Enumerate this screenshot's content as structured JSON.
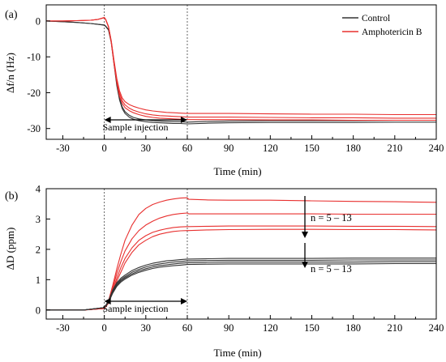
{
  "figure": {
    "panels": [
      {
        "label": "(a)",
        "xlabel": "Time (min)",
        "ylabel": "Δf/n (Hz)"
      },
      {
        "label": "(b)",
        "xlabel": "Time (min)",
        "ylabel": "ΔD (ppm)"
      }
    ],
    "legend": [
      {
        "name": "Control",
        "color": "#333333"
      },
      {
        "name": "Amphotericin B",
        "color": "#e8302f"
      }
    ],
    "annotations": {
      "injection_a": "Sample injection",
      "injection_b": "Sample injection",
      "n_red": "n = 5 – 13",
      "n_black": "n = 5 – 13"
    }
  },
  "chart_data": [
    {
      "type": "line",
      "label": "(a)",
      "xlabel": "Time (min)",
      "ylabel": "Δf/n (Hz)",
      "xlim": [
        -42,
        240
      ],
      "ylim": [
        -33,
        4.5
      ],
      "xticks": [
        -30,
        0,
        30,
        60,
        90,
        120,
        150,
        180,
        210,
        240
      ],
      "yticks": [
        0,
        -10,
        -20,
        -30
      ],
      "legend_position": "top-right",
      "vlines": [
        0,
        60
      ],
      "injection_interval": [
        0,
        60
      ],
      "series": [
        {
          "group": "Control",
          "color": "#333333",
          "x": [
            -42,
            -30,
            -20,
            -10,
            -5,
            0,
            1,
            3,
            5,
            7,
            9,
            11,
            13,
            15,
            18,
            21,
            25,
            30,
            35,
            40,
            45,
            50,
            55,
            60,
            75,
            90,
            120,
            150,
            180,
            210,
            240
          ],
          "y": [
            0,
            -0.2,
            -0.4,
            -0.7,
            -0.9,
            -1.2,
            -1.5,
            -2.5,
            -6,
            -12,
            -18,
            -22,
            -24.5,
            -25.8,
            -26.8,
            -27.4,
            -27.8,
            -28.1,
            -28.3,
            -28.4,
            -28.5,
            -28.6,
            -28.6,
            -28.7,
            -28.5,
            -28.4,
            -28.3,
            -28.3,
            -28.3,
            -28.2,
            -28.2
          ]
        },
        {
          "group": "Control",
          "color": "#333333",
          "x": [
            -42,
            -30,
            -20,
            -10,
            -5,
            0,
            1,
            3,
            5,
            7,
            9,
            11,
            13,
            15,
            18,
            21,
            25,
            30,
            35,
            40,
            45,
            50,
            55,
            60,
            75,
            90,
            120,
            150,
            180,
            210,
            240
          ],
          "y": [
            0,
            -0.2,
            -0.4,
            -0.7,
            -0.9,
            -1.1,
            -1.4,
            -2.4,
            -5.8,
            -11.5,
            -17.5,
            -21.5,
            -24,
            -25.3,
            -26.3,
            -26.9,
            -27.3,
            -27.6,
            -27.8,
            -27.9,
            -28,
            -28.1,
            -28.1,
            -28.2,
            -28,
            -27.9,
            -27.8,
            -27.8,
            -27.8,
            -27.7,
            -27.7
          ]
        },
        {
          "group": "Amphotericin B",
          "color": "#e8302f",
          "x": [
            -42,
            -30,
            -20,
            -10,
            -5,
            0,
            1,
            3,
            5,
            7,
            9,
            11,
            13,
            15,
            18,
            21,
            25,
            30,
            35,
            40,
            45,
            50,
            55,
            60,
            75,
            90,
            120,
            150,
            180,
            210,
            240
          ],
          "y": [
            0,
            0,
            0.1,
            0.2,
            0.4,
            1,
            0.5,
            -1.5,
            -5.5,
            -11,
            -16,
            -19.5,
            -21.5,
            -22.5,
            -23.3,
            -23.8,
            -24.3,
            -24.8,
            -25.1,
            -25.3,
            -25.5,
            -25.6,
            -25.7,
            -25.8,
            -25.8,
            -25.8,
            -25.9,
            -26,
            -26,
            -26.1,
            -26.1
          ]
        },
        {
          "group": "Amphotericin B",
          "color": "#e8302f",
          "x": [
            -42,
            -30,
            -20,
            -10,
            -5,
            0,
            1,
            3,
            5,
            7,
            9,
            11,
            13,
            15,
            18,
            21,
            25,
            30,
            35,
            40,
            45,
            50,
            55,
            60,
            75,
            90,
            120,
            150,
            180,
            210,
            240
          ],
          "y": [
            0,
            0,
            0.1,
            0.2,
            0.4,
            0.9,
            0.4,
            -1.6,
            -5.8,
            -11.5,
            -16.6,
            -20.2,
            -22.3,
            -23.4,
            -24.3,
            -24.9,
            -25.4,
            -25.9,
            -26.2,
            -26.4,
            -26.5,
            -26.6,
            -26.7,
            -26.8,
            -26.8,
            -26.8,
            -26.9,
            -27,
            -27,
            -27.1,
            -27.1
          ]
        },
        {
          "group": "Amphotericin B",
          "color": "#e8302f",
          "x": [
            -42,
            -30,
            -20,
            -10,
            -5,
            0,
            1,
            3,
            5,
            7,
            9,
            11,
            13,
            15,
            18,
            21,
            25,
            30,
            35,
            40,
            45,
            50,
            55,
            60,
            75,
            90,
            120,
            150,
            180,
            210,
            240
          ],
          "y": [
            0,
            0,
            0.1,
            0.2,
            0.4,
            0.9,
            0.4,
            -1.7,
            -6,
            -12,
            -17.2,
            -21,
            -23,
            -24.2,
            -25,
            -25.6,
            -26.1,
            -26.6,
            -26.9,
            -27.1,
            -27.2,
            -27.3,
            -27.4,
            -27.5,
            -27.5,
            -27.5,
            -27.6,
            -27.6,
            -27.7,
            -27.7,
            -27.7
          ]
        }
      ]
    },
    {
      "type": "line",
      "label": "(b)",
      "xlabel": "Time (min)",
      "ylabel": "ΔD (ppm)",
      "xlim": [
        -42,
        240
      ],
      "ylim": [
        -0.3,
        4
      ],
      "xticks": [
        -30,
        0,
        30,
        60,
        90,
        120,
        150,
        180,
        210,
        240
      ],
      "yticks": [
        0,
        1,
        2,
        3,
        4
      ],
      "vlines": [
        0,
        60
      ],
      "injection_interval": [
        0,
        60
      ],
      "series": [
        {
          "group": "Amphotericin B",
          "color": "#e8302f",
          "x": [
            -42,
            -30,
            -15,
            0,
            3,
            6,
            9,
            12,
            15,
            20,
            25,
            30,
            35,
            40,
            45,
            50,
            55,
            60,
            61,
            75,
            90,
            120,
            150,
            180,
            210,
            240
          ],
          "y": [
            0,
            0,
            0,
            0.05,
            0.3,
            0.8,
            1.35,
            1.85,
            2.3,
            2.8,
            3.15,
            3.35,
            3.48,
            3.56,
            3.62,
            3.66,
            3.69,
            3.7,
            3.65,
            3.63,
            3.62,
            3.62,
            3.6,
            3.58,
            3.57,
            3.55
          ]
        },
        {
          "group": "Amphotericin B",
          "color": "#e8302f",
          "x": [
            -42,
            -30,
            -15,
            0,
            3,
            6,
            9,
            12,
            15,
            20,
            25,
            30,
            35,
            40,
            45,
            50,
            55,
            60,
            61,
            75,
            90,
            120,
            150,
            180,
            210,
            240
          ],
          "y": [
            0,
            0,
            0,
            0.05,
            0.28,
            0.72,
            1.2,
            1.6,
            1.95,
            2.35,
            2.62,
            2.8,
            2.93,
            3.03,
            3.1,
            3.15,
            3.18,
            3.2,
            3.17,
            3.17,
            3.17,
            3.17,
            3.17,
            3.16,
            3.16,
            3.16
          ]
        },
        {
          "group": "Amphotericin B",
          "color": "#e8302f",
          "x": [
            -42,
            -30,
            -15,
            0,
            3,
            6,
            9,
            12,
            15,
            20,
            25,
            30,
            35,
            40,
            45,
            50,
            55,
            60,
            61,
            75,
            90,
            120,
            150,
            180,
            210,
            240
          ],
          "y": [
            0,
            0,
            0,
            0.05,
            0.25,
            0.65,
            1.05,
            1.4,
            1.7,
            2.05,
            2.3,
            2.45,
            2.56,
            2.63,
            2.68,
            2.72,
            2.74,
            2.75,
            2.75,
            2.76,
            2.77,
            2.77,
            2.77,
            2.76,
            2.76,
            2.75
          ]
        },
        {
          "group": "Amphotericin B",
          "color": "#e8302f",
          "x": [
            -42,
            -30,
            -15,
            0,
            3,
            6,
            9,
            12,
            15,
            20,
            25,
            30,
            35,
            40,
            45,
            50,
            55,
            60,
            61,
            75,
            90,
            120,
            150,
            180,
            210,
            240
          ],
          "y": [
            0,
            0,
            0,
            0.05,
            0.22,
            0.58,
            0.95,
            1.25,
            1.55,
            1.9,
            2.15,
            2.3,
            2.42,
            2.5,
            2.55,
            2.59,
            2.61,
            2.62,
            2.62,
            2.64,
            2.65,
            2.66,
            2.66,
            2.65,
            2.65,
            2.64
          ]
        },
        {
          "group": "Control",
          "color": "#333333",
          "x": [
            -42,
            -30,
            -15,
            0,
            3,
            6,
            9,
            12,
            15,
            20,
            25,
            30,
            35,
            40,
            45,
            50,
            55,
            60,
            75,
            90,
            120,
            150,
            180,
            210,
            240
          ],
          "y": [
            0,
            0,
            0,
            0.08,
            0.3,
            0.65,
            0.9,
            1.05,
            1.15,
            1.3,
            1.4,
            1.48,
            1.54,
            1.58,
            1.62,
            1.64,
            1.66,
            1.68,
            1.69,
            1.7,
            1.7,
            1.7,
            1.71,
            1.71,
            1.71
          ]
        },
        {
          "group": "Control",
          "color": "#333333",
          "x": [
            -42,
            -30,
            -15,
            0,
            3,
            6,
            9,
            12,
            15,
            20,
            25,
            30,
            35,
            40,
            45,
            50,
            55,
            60,
            75,
            90,
            120,
            150,
            180,
            210,
            240
          ],
          "y": [
            0,
            0,
            0,
            0.08,
            0.28,
            0.62,
            0.86,
            1.0,
            1.1,
            1.24,
            1.34,
            1.42,
            1.48,
            1.52,
            1.55,
            1.58,
            1.6,
            1.62,
            1.63,
            1.64,
            1.64,
            1.64,
            1.65,
            1.65,
            1.65
          ]
        },
        {
          "group": "Control",
          "color": "#333333",
          "x": [
            -42,
            -30,
            -15,
            0,
            3,
            6,
            9,
            12,
            15,
            20,
            25,
            30,
            35,
            40,
            45,
            50,
            55,
            60,
            75,
            90,
            120,
            150,
            180,
            210,
            240
          ],
          "y": [
            0,
            0,
            0,
            0.08,
            0.26,
            0.58,
            0.82,
            0.96,
            1.06,
            1.19,
            1.29,
            1.36,
            1.42,
            1.46,
            1.49,
            1.52,
            1.54,
            1.56,
            1.57,
            1.58,
            1.58,
            1.58,
            1.58,
            1.59,
            1.59
          ]
        },
        {
          "group": "Control",
          "color": "#333333",
          "x": [
            -42,
            -30,
            -15,
            0,
            3,
            6,
            9,
            12,
            15,
            20,
            25,
            30,
            35,
            40,
            45,
            50,
            55,
            60,
            75,
            90,
            120,
            150,
            180,
            210,
            240
          ],
          "y": [
            0,
            0,
            0,
            0.08,
            0.24,
            0.55,
            0.78,
            0.92,
            1.02,
            1.15,
            1.24,
            1.31,
            1.37,
            1.41,
            1.44,
            1.46,
            1.48,
            1.5,
            1.51,
            1.52,
            1.52,
            1.52,
            1.52,
            1.53,
            1.53
          ]
        }
      ]
    }
  ]
}
